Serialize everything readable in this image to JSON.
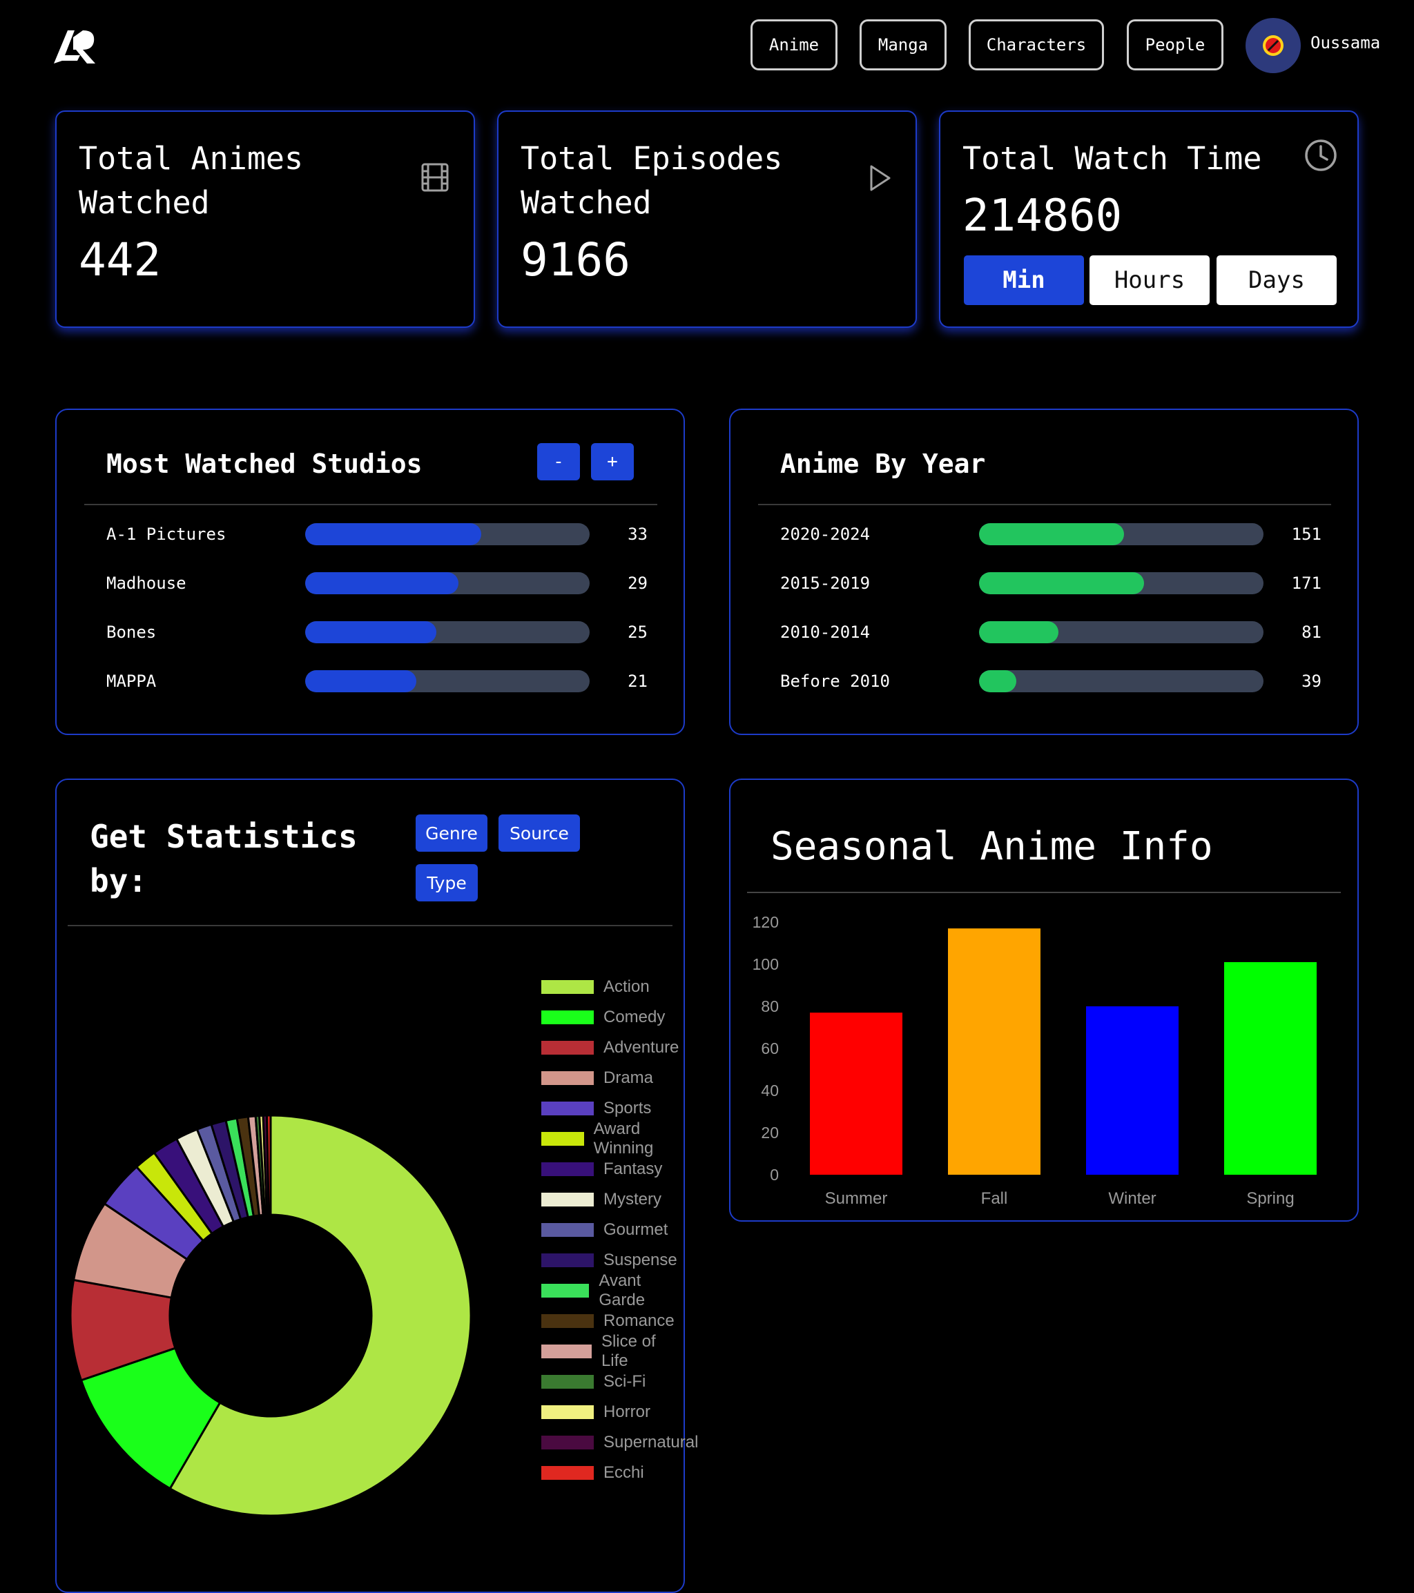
{
  "header": {
    "nav": [
      "Anime",
      "Manga",
      "Characters",
      "People"
    ],
    "username": "Oussama"
  },
  "stats": {
    "animes": {
      "title": "Total Animes Watched",
      "value": "442"
    },
    "episodes": {
      "title": "Total Episodes Watched",
      "value": "9166"
    },
    "watch_time": {
      "title": "Total Watch Time",
      "value": "214860",
      "units": [
        "Min",
        "Hours",
        "Days"
      ],
      "active_unit": "Min"
    }
  },
  "studios": {
    "title": "Most Watched Studios",
    "minus_label": "-",
    "plus_label": "+",
    "bar_color": "#1d45d8",
    "rows": [
      {
        "label": "A-1 Pictures",
        "value": "33",
        "fill": 0.62
      },
      {
        "label": "Madhouse",
        "value": "29",
        "fill": 0.54
      },
      {
        "label": "Bones",
        "value": "25",
        "fill": 0.46
      },
      {
        "label": "MAPPA",
        "value": "21",
        "fill": 0.39
      }
    ]
  },
  "by_year": {
    "title": "Anime By Year",
    "bar_color": "#22c55e",
    "rows": [
      {
        "label": "2020-2024",
        "value": "151",
        "fill": 0.51
      },
      {
        "label": "2015-2019",
        "value": "171",
        "fill": 0.58
      },
      {
        "label": "2010-2014",
        "value": "81",
        "fill": 0.28
      },
      {
        "label": "Before 2010",
        "value": "39",
        "fill": 0.13
      }
    ]
  },
  "get_statistics": {
    "title": "Get Statistics by:",
    "buttons": [
      "Genre",
      "Source",
      "Type"
    ]
  },
  "chart_data": [
    {
      "type": "pie",
      "title": "",
      "categories": [
        "Action",
        "Comedy",
        "Adventure",
        "Drama",
        "Sports",
        "Award Winning",
        "Fantasy",
        "Mystery",
        "Gourmet",
        "Suspense",
        "Avant Garde",
        "Romance",
        "Slice of Life",
        "Sci-Fi",
        "Horror",
        "Supernatural",
        "Ecchi"
      ],
      "values": [
        195,
        38,
        27,
        22,
        13,
        6,
        7,
        6,
        4,
        4,
        3,
        3,
        2,
        1,
        1,
        1,
        1
      ],
      "colors": [
        "#aee645",
        "#1aff1a",
        "#b82e35",
        "#d2968a",
        "#5a40c0",
        "#c8e60a",
        "#38107a",
        "#ececd2",
        "#5a5aa0",
        "#2d1468",
        "#3ae05a",
        "#4a3210",
        "#d4a09a",
        "#3a7a30",
        "#f0f080",
        "#4a0a40",
        "#e02820"
      ],
      "donut": true,
      "legend": "right"
    },
    {
      "type": "bar",
      "title": "Seasonal Anime Info",
      "categories": [
        "Summer",
        "Fall",
        "Winter",
        "Spring"
      ],
      "values": [
        77,
        117,
        80,
        101
      ],
      "colors": [
        "#ff0000",
        "#ffa500",
        "#0000ff",
        "#00ff00"
      ],
      "ylim": [
        0,
        120
      ],
      "yticks": [
        0,
        20,
        40,
        60,
        80,
        100,
        120
      ],
      "grid": false
    }
  ]
}
